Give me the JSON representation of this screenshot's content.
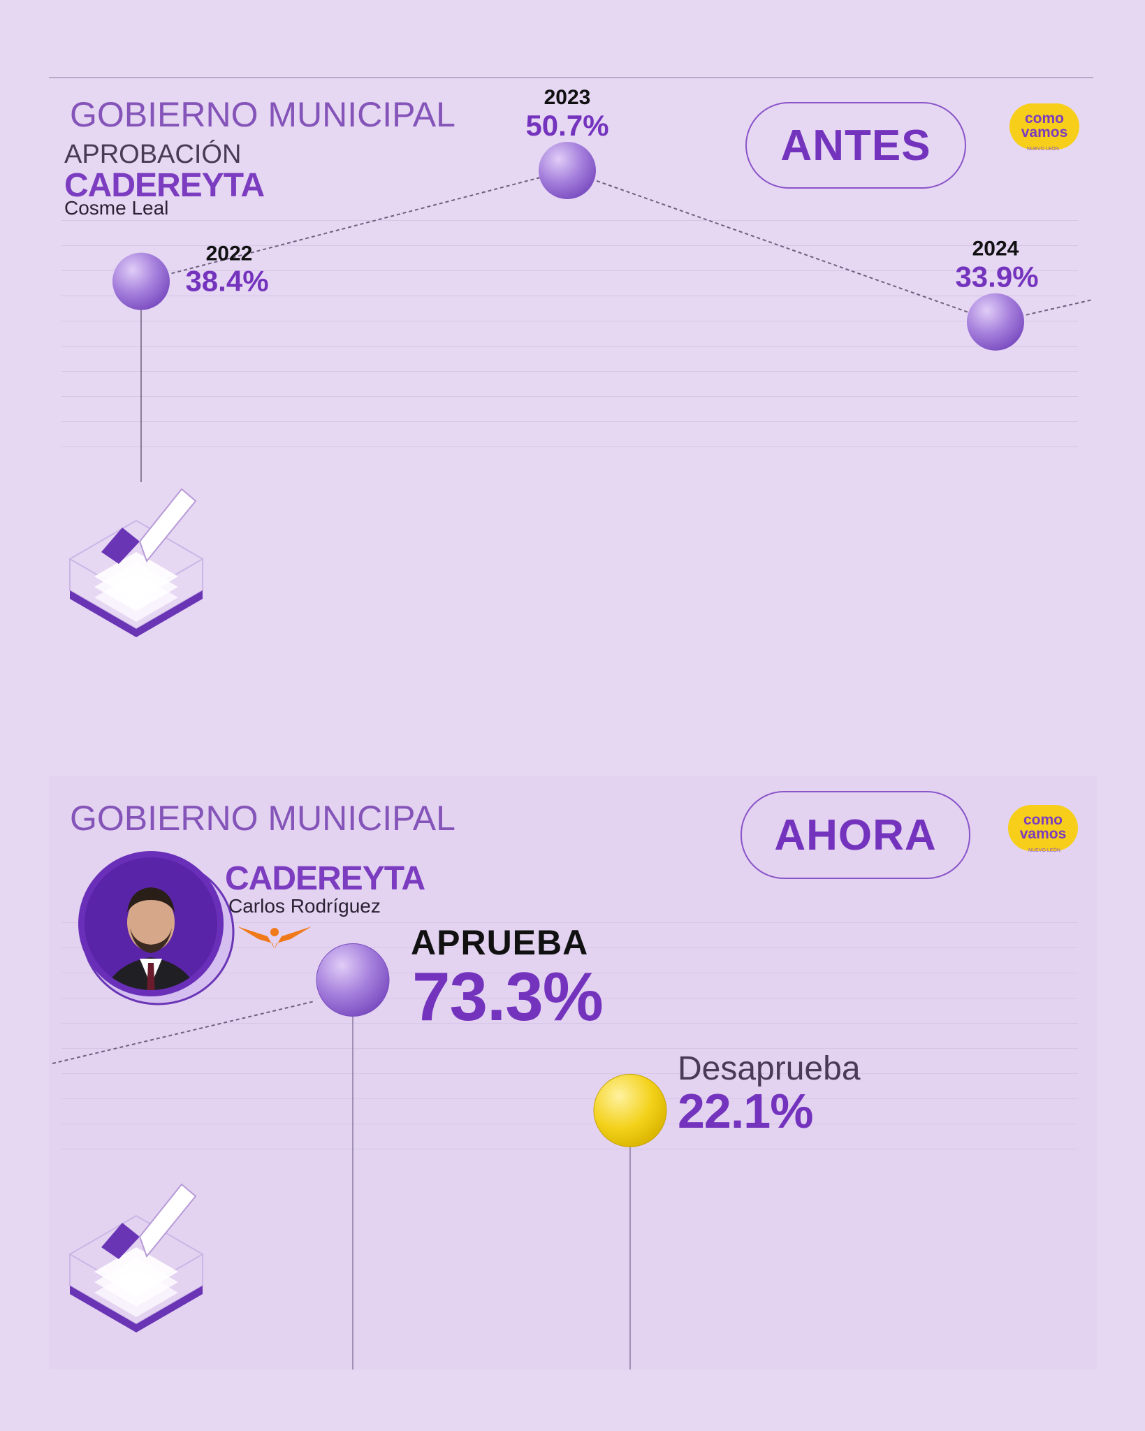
{
  "antes": {
    "heading": "GOBIERNO MUNICIPAL",
    "subheading": "APROBACIÓN",
    "city": "CADEREYTA",
    "official": "Cosme Leal",
    "badge": "ANTES"
  },
  "ahora": {
    "heading": "GOBIERNO MUNICIPAL",
    "city": "CADEREYTA",
    "official": "Carlos Rodríguez",
    "badge": "AHORA",
    "approve_label": "APRUEBA",
    "approve_value": "73.3%",
    "disapprove_label": "Desaprueba",
    "disapprove_value": "22.1%"
  },
  "logo": {
    "line1": "como",
    "line2": "vamos",
    "region": "NUEVO LEÓN",
    "color": "#f7cf1a"
  },
  "colors": {
    "accent": "#7433bd",
    "bubble_purple": "#a57fdc",
    "bubble_yellow": "#f3d11a",
    "background": "#e6d7f3"
  },
  "chart_data": [
    {
      "type": "line",
      "title": "GOBIERNO MUNICIPAL",
      "x": [
        "2022",
        "2023",
        "2024"
      ],
      "series": [
        {
          "values": [
            38.4,
            50.7,
            33.9
          ],
          "labels": [
            "38.4%",
            "50.7%",
            "33.9%"
          ]
        }
      ],
      "ylabel": "",
      "xlabel": "",
      "grid": true
    },
    {
      "type": "bar",
      "title": "GOBIERNO MUNICIPAL",
      "categories": [
        "APRUEBA",
        "Desaprueba"
      ],
      "values": [
        73.3,
        22.1
      ],
      "labels": [
        "73.3%",
        "22.1%"
      ],
      "grid": true
    }
  ]
}
